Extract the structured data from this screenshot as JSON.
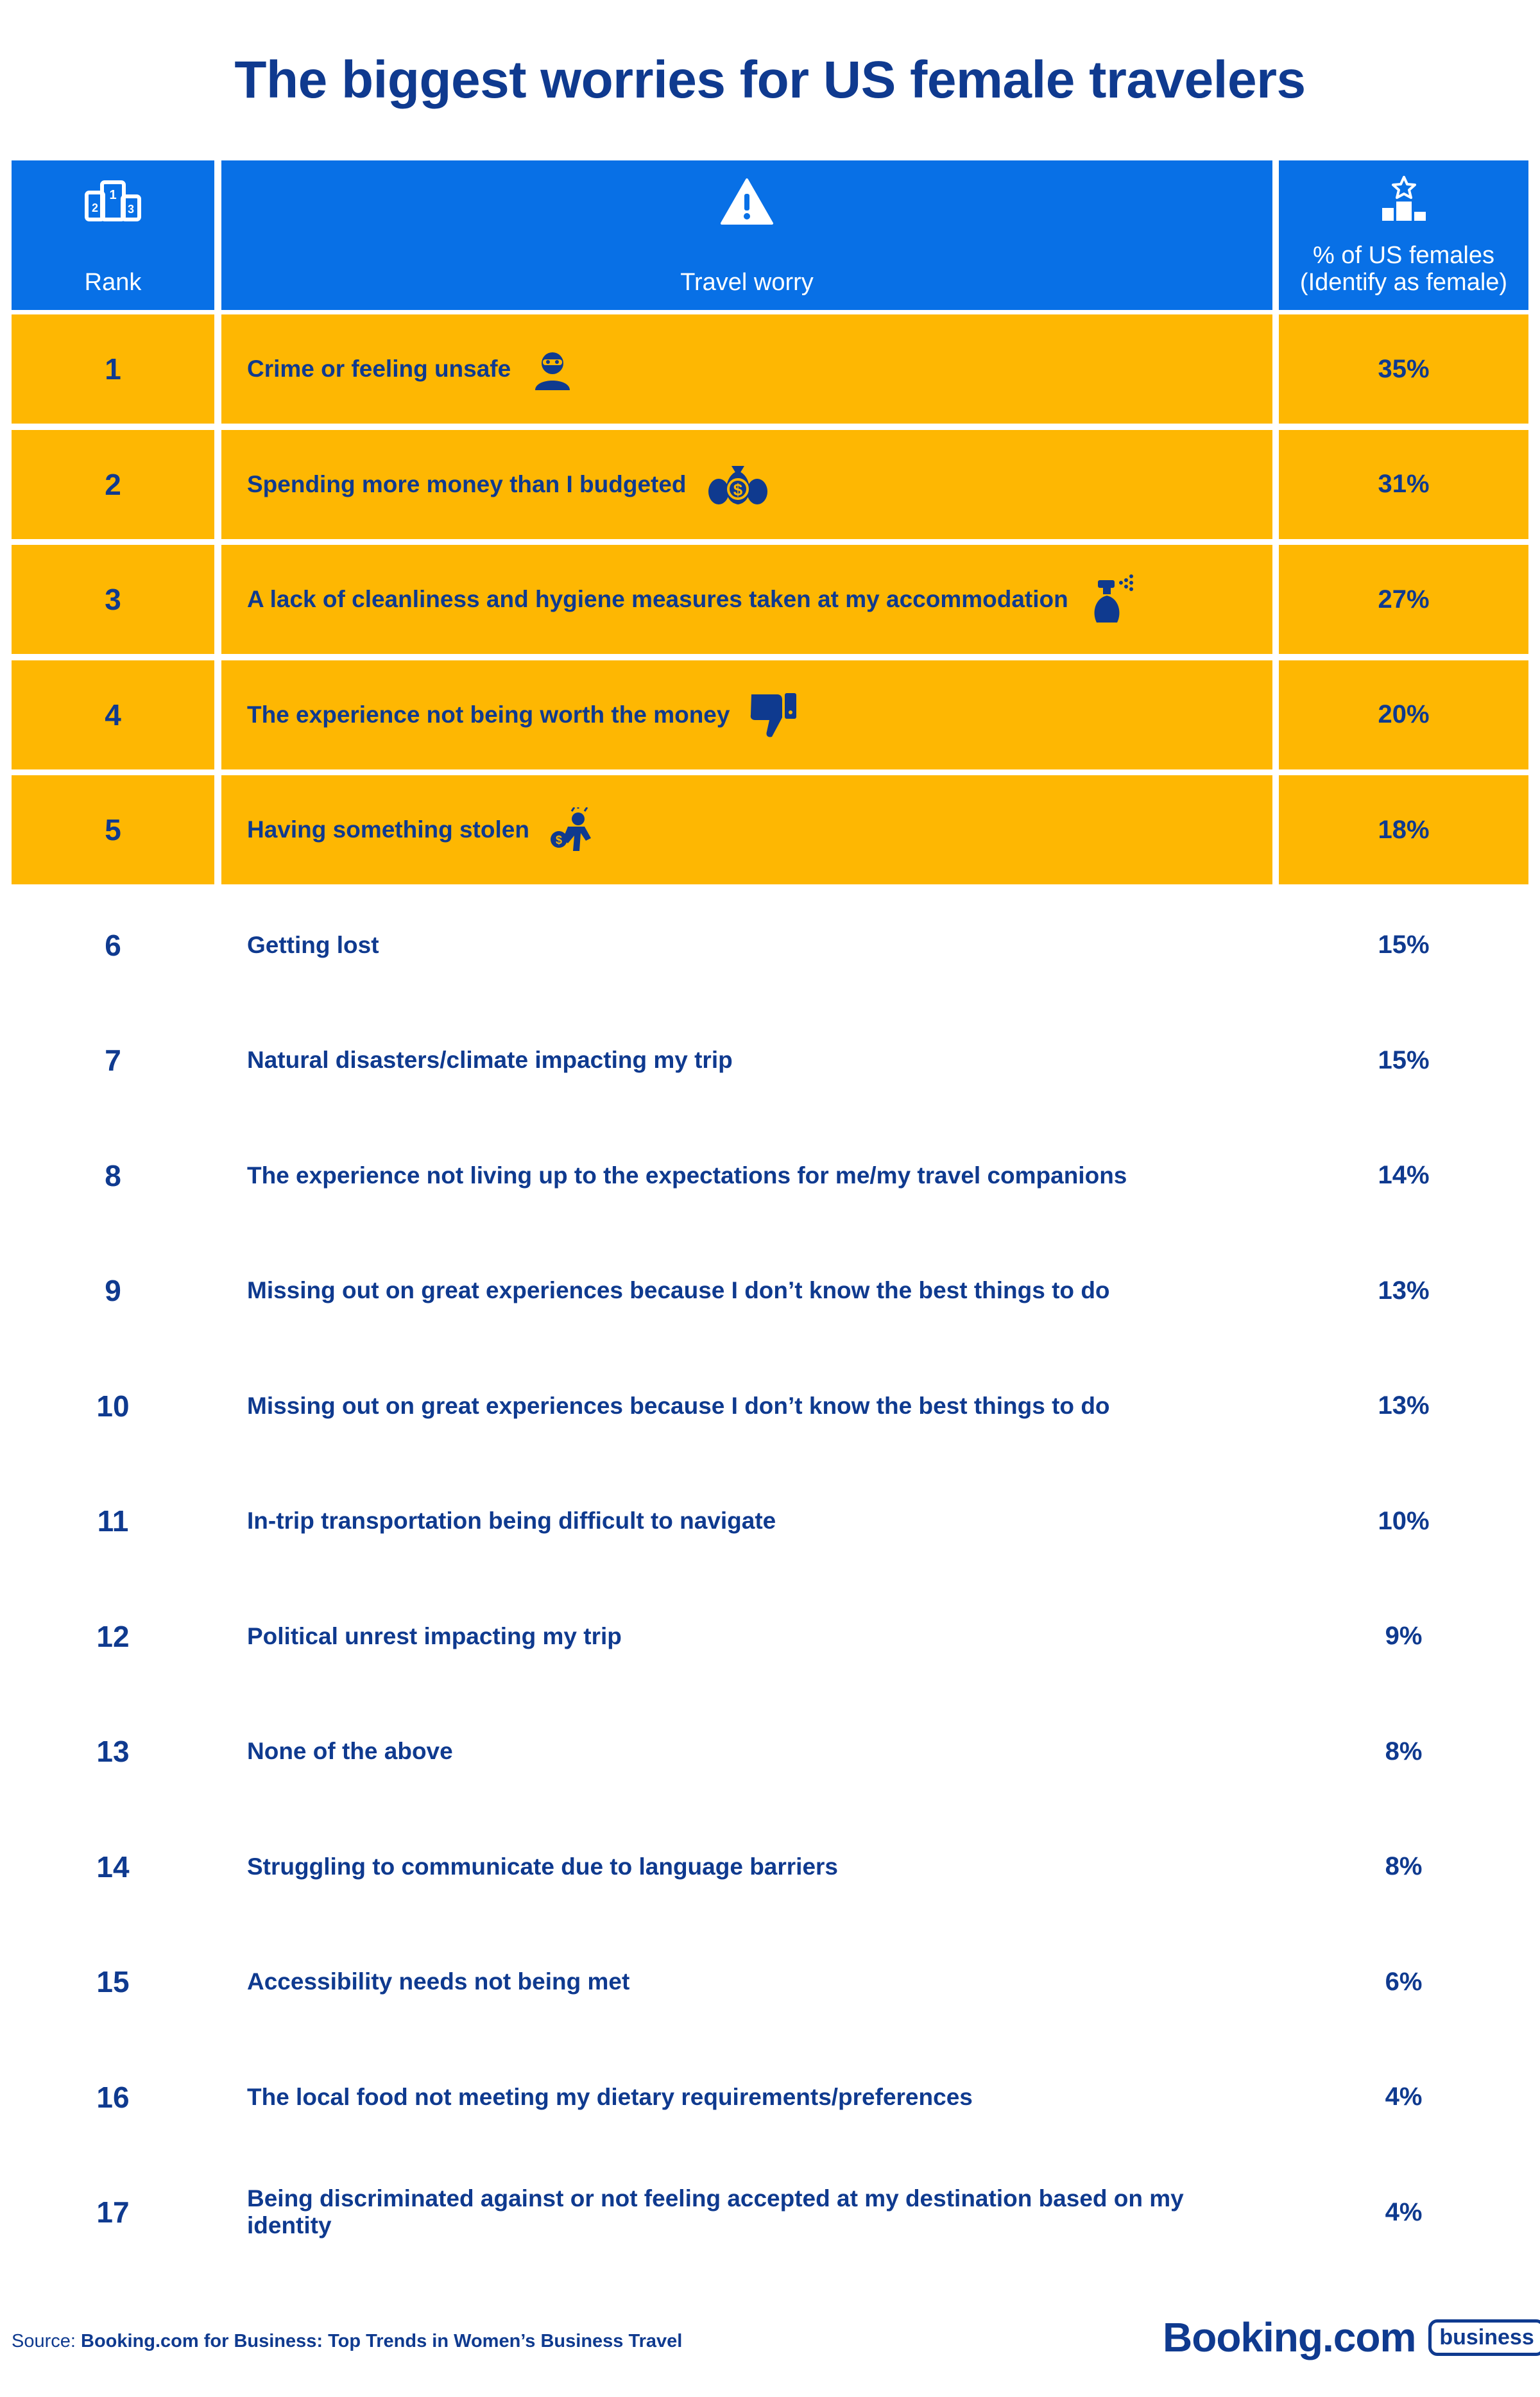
{
  "title": "The biggest worries for US female travelers",
  "header": {
    "rank_label": "Rank",
    "worry_label": "Travel worry",
    "pct_label_line1": "% of US females",
    "pct_label_line2": "(Identify as female)",
    "rank_icon": "podium-numbers-icon",
    "worry_icon": "warning-triangle-icon",
    "pct_icon": "podium-star-icon"
  },
  "rows": [
    {
      "rank": "1",
      "worry": "Crime or feeling unsafe",
      "pct": "35%",
      "highlight": true,
      "icon": "masked-person-icon"
    },
    {
      "rank": "2",
      "worry": "Spending more money than I budgeted",
      "pct": "31%",
      "highlight": true,
      "icon": "money-bags-icon"
    },
    {
      "rank": "3",
      "worry": "A lack of cleanliness and hygiene measures taken at my accommodation",
      "pct": "27%",
      "highlight": true,
      "icon": "spray-bottle-icon"
    },
    {
      "rank": "4",
      "worry": "The experience not being worth the money",
      "pct": "20%",
      "highlight": true,
      "icon": "thumbs-down-icon"
    },
    {
      "rank": "5",
      "worry": "Having something stolen",
      "pct": "18%",
      "highlight": true,
      "icon": "thief-icon"
    },
    {
      "rank": "6",
      "worry": "Getting lost",
      "pct": "15%",
      "highlight": false
    },
    {
      "rank": "7",
      "worry": "Natural disasters/climate impacting my trip",
      "pct": "15%",
      "highlight": false
    },
    {
      "rank": "8",
      "worry": "The experience not living up to the expectations for me/my travel companions",
      "pct": "14%",
      "highlight": false
    },
    {
      "rank": "9",
      "worry": "Missing out on great experiences because I don’t know the best things to do",
      "pct": "13%",
      "highlight": false
    },
    {
      "rank": "10",
      "worry": "Missing out on great experiences because I don’t know the best things to do",
      "pct": "13%",
      "highlight": false
    },
    {
      "rank": "11",
      "worry": "In-trip transportation being difficult to navigate",
      "pct": "10%",
      "highlight": false
    },
    {
      "rank": "12",
      "worry": "Political unrest impacting my trip",
      "pct": "9%",
      "highlight": false
    },
    {
      "rank": "13",
      "worry": "None of the above",
      "pct": "8%",
      "highlight": false
    },
    {
      "rank": "14",
      "worry": "Struggling to communicate due to language barriers",
      "pct": "8%",
      "highlight": false
    },
    {
      "rank": "15",
      "worry": "Accessibility needs not being met",
      "pct": "6%",
      "highlight": false
    },
    {
      "rank": "16",
      "worry": "The local food not meeting my dietary requirements/preferences",
      "pct": "4%",
      "highlight": false
    },
    {
      "rank": "17",
      "worry": "Being discriminated against or not feeling accepted at my destination based on my identity",
      "pct": "4%",
      "highlight": false
    }
  ],
  "footer": {
    "source_prefix": "Source: ",
    "source_text": "Booking.com for Business: Top Trends in Women’s Business Travel",
    "logo_word": "Booking.com",
    "logo_badge": "business"
  },
  "colors": {
    "header_blue": "#0870e6",
    "highlight_yellow": "#feb702",
    "text_navy": "#0f3a8f"
  }
}
